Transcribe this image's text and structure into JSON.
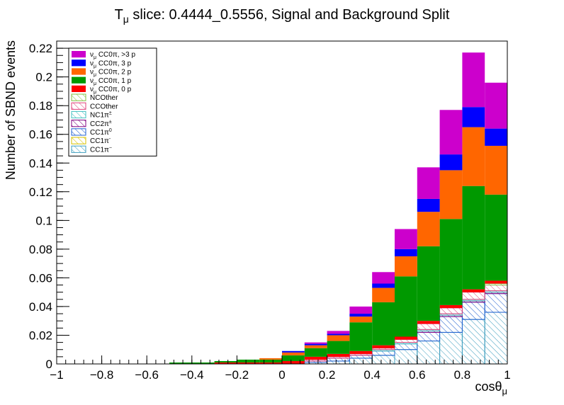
{
  "chart_data": {
    "type": "bar",
    "stacked": true,
    "title": "Tμ slice: 0.4444_0.5556, Signal and Background Split",
    "title_main": "T",
    "title_sub": "μ",
    "title_rest": " slice: 0.4444_0.5556, Signal and Background Split",
    "xlabel_main": "cosθ",
    "xlabel_sub": "μ",
    "ylabel": "Number of SBND events",
    "xlim": [
      -1,
      1
    ],
    "ylim": [
      0,
      0.225
    ],
    "xticks": [
      -1,
      -0.8,
      -0.6,
      -0.4,
      -0.2,
      0,
      0.2,
      0.4,
      0.6,
      0.8,
      1
    ],
    "xtick_labels": [
      "−1",
      "−0.8",
      "−0.6",
      "−0.4",
      "−0.2",
      "0",
      "0.2",
      "0.4",
      "0.6",
      "0.8",
      "1"
    ],
    "yticks": [
      0,
      0.02,
      0.04,
      0.06,
      0.08,
      0.1,
      0.12,
      0.14,
      0.16,
      0.18,
      0.2,
      0.22
    ],
    "ytick_labels": [
      "0",
      "0.02",
      "0.04",
      "0.06",
      "0.08",
      "0.1",
      "0.12",
      "0.14",
      "0.16",
      "0.18",
      "0.2",
      "0.22"
    ],
    "bin_edges": [
      -1,
      -0.9,
      -0.8,
      -0.7,
      -0.6,
      -0.5,
      -0.4,
      -0.3,
      -0.2,
      -0.1,
      0,
      0.1,
      0.2,
      0.3,
      0.4,
      0.5,
      0.6,
      0.7,
      0.8,
      0.9,
      1
    ],
    "legend_position": "top-left",
    "grid": false,
    "series": [
      {
        "key": "cc1pi_minus",
        "label_main": "CC1π",
        "label_sup": "−",
        "style": "hatch",
        "color": "#3f9fbf",
        "values": [
          0,
          0,
          0,
          0,
          0,
          0,
          0,
          0,
          0,
          0,
          0,
          0.001,
          0.002,
          0.004,
          0.006,
          0.01,
          0.016,
          0.022,
          0.031,
          0.036
        ]
      },
      {
        "key": "cc1pi_zero_minus",
        "label_main": "CC1π",
        "label_sup": "-",
        "style": "hatch",
        "color": "#d6c200",
        "values": [
          0,
          0,
          0,
          0,
          0,
          0,
          0,
          0,
          0,
          0,
          0,
          0,
          0,
          0,
          0,
          0,
          0,
          0,
          0,
          0
        ]
      },
      {
        "key": "cc1pi0",
        "label_main": "CC1π",
        "label_sup": "0",
        "style": "hatch",
        "color": "#2060d0",
        "values": [
          0,
          0,
          0,
          0,
          0,
          0,
          0,
          0,
          0,
          0,
          0,
          0.001,
          0.002,
          0.002,
          0.003,
          0.004,
          0.006,
          0.011,
          0.012,
          0.013
        ]
      },
      {
        "key": "cc2pi",
        "label_main": "CC2π",
        "label_sup": "±",
        "style": "hatch",
        "color": "#800080",
        "values": [
          0,
          0,
          0,
          0,
          0,
          0,
          0,
          0,
          0,
          0,
          0,
          0,
          0,
          0,
          0,
          0,
          0.001,
          0.001,
          0.001,
          0.001
        ]
      },
      {
        "key": "nc1pi",
        "label_main": "NC1π",
        "label_sup": "±",
        "style": "hatch",
        "color": "#40c0c0",
        "values": [
          0,
          0,
          0,
          0,
          0,
          0,
          0,
          0,
          0,
          0,
          0,
          0,
          0,
          0,
          0.001,
          0.001,
          0.001,
          0.001,
          0.001,
          0.001
        ]
      },
      {
        "key": "ccother",
        "label_main": "CCOther",
        "label_sup": "",
        "style": "hatch",
        "color": "#e0407a",
        "values": [
          0,
          0,
          0,
          0,
          0,
          0,
          0,
          0,
          0,
          0,
          0,
          0.001,
          0.001,
          0.001,
          0.001,
          0.002,
          0.004,
          0.004,
          0.005,
          0.004
        ]
      },
      {
        "key": "ncother",
        "label_main": "NCOther",
        "label_sup": "",
        "style": "hatch",
        "color": "#80c040",
        "values": [
          0,
          0,
          0,
          0,
          0,
          0,
          0,
          0,
          0,
          0,
          0,
          0,
          0,
          0,
          0,
          0,
          0,
          0,
          0,
          0.001
        ]
      },
      {
        "key": "cc0pi_0p",
        "label_main": "ν",
        "label_sub": "μ",
        "label_rest": " CC0π, 0 p",
        "style": "fill",
        "color": "#ff0000",
        "values": [
          0,
          0,
          0,
          0,
          0,
          0,
          0,
          0.001,
          0.001,
          0.001,
          0.002,
          0.002,
          0.002,
          0.002,
          0.002,
          0.002,
          0.002,
          0.002,
          0.002,
          0.002
        ]
      },
      {
        "key": "cc0pi_1p",
        "label_main": "ν",
        "label_sub": "μ",
        "label_rest": " CC0π, 1 p",
        "style": "fill",
        "color": "#009900",
        "values": [
          0,
          0,
          0,
          0,
          0,
          0.001,
          0.001,
          0.001,
          0.002,
          0.002,
          0.004,
          0.006,
          0.009,
          0.02,
          0.03,
          0.042,
          0.052,
          0.06,
          0.072,
          0.06
        ]
      },
      {
        "key": "cc0pi_2p",
        "label_main": "ν",
        "label_sub": "μ",
        "label_rest": " CC0π, 2 p",
        "style": "fill",
        "color": "#ff6600",
        "values": [
          0,
          0,
          0,
          0,
          0,
          0,
          0,
          0,
          0,
          0.001,
          0.002,
          0.002,
          0.004,
          0.004,
          0.01,
          0.014,
          0.024,
          0.034,
          0.041,
          0.034
        ]
      },
      {
        "key": "cc0pi_3p",
        "label_main": "ν",
        "label_sub": "μ",
        "label_rest": " CC0π, 3 p",
        "style": "fill",
        "color": "#0000ff",
        "values": [
          0,
          0,
          0,
          0,
          0,
          0,
          0,
          0,
          0,
          0,
          0.001,
          0.001,
          0.001,
          0.002,
          0.003,
          0.005,
          0.009,
          0.011,
          0.014,
          0.012
        ]
      },
      {
        "key": "cc0pi_gt3p",
        "label_main": "ν",
        "label_sub": "μ",
        "label_rest": " CC0π, >3 p",
        "style": "fill",
        "color": "#cc00cc",
        "values": [
          0,
          0,
          0,
          0,
          0,
          0,
          0,
          0,
          0,
          0,
          0,
          0.001,
          0.002,
          0.005,
          0.008,
          0.014,
          0.022,
          0.031,
          0.038,
          0.032
        ]
      }
    ],
    "legend_order": [
      "cc0pi_gt3p",
      "cc0pi_3p",
      "cc0pi_2p",
      "cc0pi_1p",
      "cc0pi_0p",
      "ncother",
      "ccother",
      "nc1pi",
      "cc2pi",
      "cc1pi0",
      "cc1pi_zero_minus",
      "cc1pi_minus"
    ]
  }
}
